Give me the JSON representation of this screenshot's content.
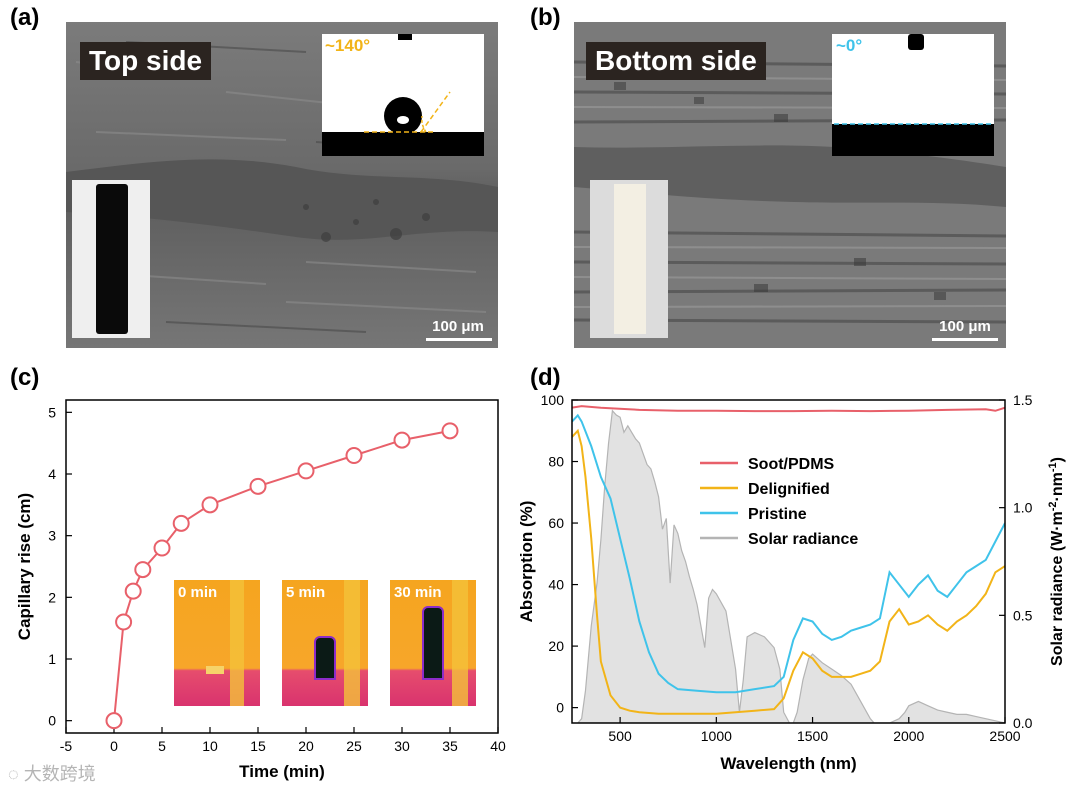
{
  "panels": {
    "a": {
      "label": "(a)",
      "title": "Top side",
      "contact_angle": "~140°",
      "scale": "100 μm"
    },
    "b": {
      "label": "(b)",
      "title": "Bottom side",
      "contact_angle": "~0°",
      "scale": "100 μm"
    },
    "c": {
      "label": "(c)",
      "inset_labels": [
        "0 min",
        "5 min",
        "30 min"
      ]
    },
    "d": {
      "label": "(d)"
    }
  },
  "colors": {
    "soot": "#e8606a",
    "delignified": "#f2b418",
    "pristine": "#3fc3ea",
    "solar": "#b4b4b4",
    "angle_a": "#f2b418",
    "angle_b": "#3fc3ea"
  },
  "watermark": "大数跨境",
  "chart_data": [
    {
      "type": "line",
      "panel": "c",
      "xlabel": "Time (min)",
      "ylabel": "Capillary rise (cm)",
      "xlim": [
        -5,
        40
      ],
      "ylim": [
        -0.2,
        5.2
      ],
      "xticks": [
        -5,
        0,
        5,
        10,
        15,
        20,
        25,
        30,
        35,
        40
      ],
      "yticks": [
        0,
        1,
        2,
        3,
        4,
        5
      ],
      "x": [
        0,
        1,
        2,
        3,
        5,
        7,
        10,
        15,
        20,
        25,
        30,
        35
      ],
      "y": [
        0,
        1.6,
        2.1,
        2.45,
        2.8,
        3.2,
        3.5,
        3.8,
        4.05,
        4.3,
        4.55,
        4.7
      ]
    },
    {
      "type": "line",
      "panel": "d",
      "xlabel": "Wavelength (nm)",
      "ylabel": "Absorption (%)",
      "y2label": "Solar radiance (W·m-2·nm-1)",
      "y2label_parts": [
        "Solar radiance (W·m",
        "-2",
        "·nm",
        "-1",
        ")"
      ],
      "xlim": [
        250,
        2500
      ],
      "ylim": [
        -5,
        100
      ],
      "y2lim": [
        0,
        1.5
      ],
      "xticks": [
        500,
        1000,
        1500,
        2000,
        2500
      ],
      "yticks": [
        0,
        20,
        40,
        60,
        80,
        100
      ],
      "y2ticks": [
        0.0,
        0.5,
        1.0,
        1.5
      ],
      "legend": [
        "Soot/PDMS",
        "Delignified",
        "Pristine",
        "Solar radiance"
      ],
      "series": [
        {
          "name": "Soot/PDMS",
          "x": [
            250,
            300,
            400,
            600,
            800,
            1000,
            1200,
            1400,
            1600,
            1800,
            2000,
            2200,
            2400,
            2450,
            2500
          ],
          "values": [
            97.5,
            98,
            97.5,
            96.8,
            96.5,
            96.5,
            96.4,
            96.4,
            96.5,
            96.4,
            96.5,
            96.8,
            97,
            96.5,
            97.5
          ]
        },
        {
          "name": "Delignified",
          "x": [
            250,
            280,
            300,
            320,
            350,
            380,
            400,
            450,
            500,
            550,
            600,
            700,
            800,
            900,
            1000,
            1100,
            1200,
            1300,
            1350,
            1400,
            1450,
            1500,
            1550,
            1600,
            1650,
            1700,
            1750,
            1800,
            1850,
            1900,
            1950,
            2000,
            2050,
            2100,
            2150,
            2200,
            2250,
            2300,
            2350,
            2400,
            2450,
            2500
          ],
          "values": [
            88,
            90,
            85,
            75,
            55,
            30,
            15,
            4,
            0,
            -1,
            -1.5,
            -2,
            -2,
            -2,
            -2,
            -1.5,
            -1,
            -0.5,
            3,
            12,
            18,
            16,
            12,
            10,
            10,
            10,
            11,
            12,
            15,
            28,
            32,
            27,
            28,
            30,
            27,
            25,
            28,
            30,
            33,
            37,
            44,
            46
          ]
        },
        {
          "name": "Pristine",
          "x": [
            250,
            280,
            300,
            350,
            400,
            450,
            500,
            550,
            600,
            650,
            700,
            750,
            800,
            900,
            1000,
            1100,
            1200,
            1300,
            1350,
            1400,
            1450,
            1500,
            1550,
            1600,
            1650,
            1700,
            1750,
            1800,
            1850,
            1900,
            1950,
            2000,
            2050,
            2100,
            2150,
            2200,
            2250,
            2300,
            2350,
            2400,
            2450,
            2500
          ],
          "values": [
            93,
            95,
            93,
            85,
            75,
            68,
            55,
            42,
            28,
            18,
            11,
            8,
            6,
            5.5,
            5,
            5,
            6,
            7,
            10,
            22,
            29,
            28,
            24,
            22,
            23,
            25,
            26,
            27,
            29,
            44,
            40,
            36,
            40,
            43,
            38,
            36,
            40,
            44,
            46,
            48,
            54,
            60
          ]
        },
        {
          "name": "Solar radiance",
          "x": [
            280,
            300,
            320,
            350,
            380,
            400,
            420,
            440,
            460,
            480,
            500,
            520,
            540,
            560,
            580,
            600,
            620,
            640,
            660,
            680,
            700,
            720,
            740,
            760,
            780,
            800,
            820,
            840,
            860,
            880,
            900,
            920,
            940,
            960,
            980,
            1000,
            1050,
            1100,
            1120,
            1140,
            1160,
            1200,
            1250,
            1300,
            1330,
            1350,
            1380,
            1400,
            1420,
            1450,
            1480,
            1500,
            1550,
            1600,
            1650,
            1700,
            1750,
            1800,
            1820,
            1850,
            1900,
            1950,
            1980,
            2000,
            2050,
            2100,
            2150,
            2200,
            2250,
            2300,
            2350,
            2400,
            2450,
            2500
          ],
          "values": [
            0,
            0.02,
            0.15,
            0.45,
            0.65,
            0.85,
            1.1,
            1.3,
            1.45,
            1.43,
            1.42,
            1.35,
            1.38,
            1.35,
            1.32,
            1.3,
            1.25,
            1.2,
            1.18,
            1.12,
            1.05,
            0.9,
            0.95,
            0.65,
            0.92,
            0.88,
            0.8,
            0.75,
            0.68,
            0.62,
            0.55,
            0.45,
            0.35,
            0.58,
            0.62,
            0.6,
            0.52,
            0.25,
            0.05,
            0.2,
            0.4,
            0.42,
            0.4,
            0.35,
            0.25,
            0.05,
            0,
            0,
            0.05,
            0.2,
            0.3,
            0.32,
            0.28,
            0.25,
            0.22,
            0.18,
            0.1,
            0.02,
            0,
            0,
            0,
            0.02,
            0.05,
            0.08,
            0.1,
            0.08,
            0.06,
            0.05,
            0.04,
            0.04,
            0.03,
            0.02,
            0.01,
            0
          ]
        }
      ]
    }
  ]
}
